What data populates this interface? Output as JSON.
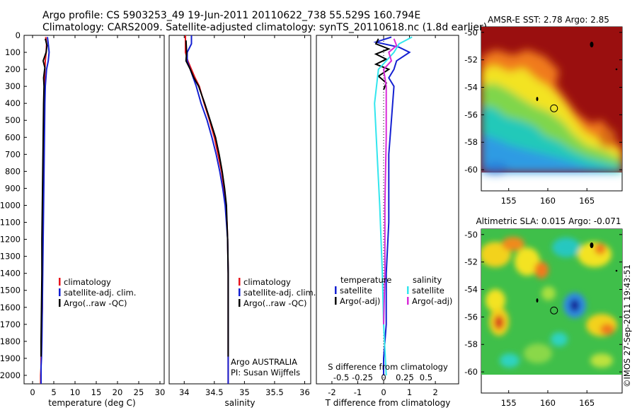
{
  "header": {
    "line1": "Argo profile: CS 5903253_49 19-Jun-2011 20110622_738 55.529S 160.794E",
    "line2": "Climatology: CARS2009. Satellite-adjusted climatology: synTS_20110618.nc (1.8d earlier)"
  },
  "side_stamp": "©IMOS 27-Sep-2011 19:43:51",
  "colors": {
    "climatology": "#e8141c",
    "satellite": "#1420d2",
    "argo": "#000000",
    "s_satellite": "#33e6ee",
    "s_argo": "#d92bd9"
  },
  "chart_data": [
    {
      "type": "line",
      "id": "temperature-profile",
      "xlabel": "temperature (deg C)",
      "ylabel": "",
      "xlim": [
        -2,
        31
      ],
      "ylim": [
        0,
        2050
      ],
      "y_reversed": true,
      "xticks": [
        0,
        5,
        10,
        15,
        20,
        25,
        30
      ],
      "yticks": [
        0,
        100,
        200,
        300,
        400,
        500,
        600,
        700,
        800,
        900,
        1000,
        1100,
        1200,
        1300,
        1400,
        1500,
        1600,
        1700,
        1800,
        1900,
        2000
      ],
      "legend_placement": "lower-left",
      "series": [
        {
          "name": "climatology",
          "color": "climatology",
          "x": [
            3.1,
            3.3,
            3.2,
            3.0,
            2.9,
            2.8,
            2.7,
            2.6,
            2.6,
            2.5,
            2.4,
            2.3,
            2.3,
            2.2,
            2.1,
            2.0,
            2.0,
            1.9,
            1.9,
            1.9
          ],
          "y": [
            10,
            50,
            100,
            150,
            200,
            300,
            400,
            600,
            800,
            1000,
            1200,
            1400,
            1600,
            1700,
            1800,
            1900,
            1950,
            2000,
            2030,
            2050
          ]
        },
        {
          "name": "satellite-adj. clim.",
          "color": "satellite",
          "x": [
            3.5,
            3.7,
            3.9,
            3.7,
            3.3,
            3.0,
            2.9,
            2.8,
            2.7,
            2.6,
            2.5,
            2.4,
            2.3,
            2.2,
            2.1,
            2.0,
            2.0,
            2.0
          ],
          "y": [
            10,
            50,
            100,
            150,
            200,
            300,
            400,
            600,
            800,
            1000,
            1200,
            1400,
            1600,
            1800,
            1900,
            1950,
            2000,
            2050
          ]
        },
        {
          "name": "Argo(..raw -QC)",
          "color": "argo",
          "x": [
            3.0,
            3.4,
            3.2,
            2.5,
            2.9,
            2.6,
            2.7,
            2.6,
            2.5,
            2.4,
            2.3,
            2.2,
            2.2,
            2.1,
            2.0,
            2.0
          ],
          "y": [
            20,
            60,
            100,
            150,
            190,
            250,
            300,
            400,
            600,
            800,
            1000,
            1200,
            1400,
            1600,
            1800,
            1890
          ]
        }
      ]
    },
    {
      "type": "line",
      "id": "salinity-profile",
      "xlabel": "salinity",
      "ylabel": "",
      "xlim": [
        33.75,
        36.1
      ],
      "ylim": [
        0,
        2050
      ],
      "y_reversed": true,
      "xticks": [
        34,
        34.5,
        35,
        35.5,
        36
      ],
      "legend_placement": "lower-right",
      "annotations": [
        "Argo AUSTRALIA",
        "PI: Susan Wijffels"
      ],
      "series": [
        {
          "name": "climatology",
          "color": "climatology",
          "x": [
            34.02,
            34.02,
            34.06,
            34.12,
            34.18,
            34.25,
            34.33,
            34.42,
            34.5,
            34.56,
            34.62,
            34.66,
            34.69,
            34.71,
            34.72,
            34.73,
            34.73,
            34.73,
            34.73
          ],
          "y": [
            0,
            100,
            150,
            200,
            250,
            300,
            400,
            500,
            600,
            700,
            800,
            900,
            1000,
            1100,
            1200,
            1400,
            1600,
            1800,
            2050
          ]
        },
        {
          "name": "satellite-adj. clim.",
          "color": "satellite",
          "x": [
            34.12,
            34.12,
            34.05,
            34.05,
            34.1,
            34.2,
            34.28,
            34.38,
            34.46,
            34.53,
            34.59,
            34.64,
            34.68,
            34.7,
            34.72,
            34.73,
            34.73,
            34.73,
            34.73
          ],
          "y": [
            0,
            50,
            100,
            150,
            200,
            300,
            400,
            500,
            600,
            700,
            800,
            900,
            1000,
            1100,
            1200,
            1400,
            1600,
            1800,
            2050
          ]
        },
        {
          "name": "Argo(..raw -QC)",
          "color": "argo",
          "x": [
            34.03,
            34.04,
            34.03,
            34.1,
            34.16,
            34.24,
            34.34,
            34.43,
            34.52,
            34.58,
            34.63,
            34.67,
            34.7,
            34.71,
            34.72,
            34.73,
            34.73,
            34.73
          ],
          "y": [
            30,
            100,
            150,
            200,
            250,
            300,
            400,
            500,
            600,
            700,
            800,
            900,
            1000,
            1100,
            1200,
            1400,
            1600,
            1890
          ]
        }
      ]
    },
    {
      "type": "line",
      "id": "difference-profile",
      "xlabel": "T difference from climatology",
      "xlabel_top": "S difference from climatology",
      "xlim": [
        -2.6,
        2.9
      ],
      "ylim": [
        0,
        2050
      ],
      "y_reversed": true,
      "xticks": [
        -2,
        -1,
        0,
        1,
        2
      ],
      "xticks_s": [
        -0.5,
        -0.25,
        0,
        0.25,
        0.5
      ],
      "xticks_s_labels": [
        "-0.5",
        "-0.25",
        "0",
        "0.25",
        "0.5"
      ],
      "legend_headers": [
        "temperature",
        "salinity"
      ],
      "series": [
        {
          "name": "satellite",
          "group": "temperature",
          "color": "satellite",
          "x": [
            0.3,
            -0.3,
            0.6,
            1.0,
            0.5,
            0.4,
            0.2,
            0.4,
            0.3,
            0.2,
            0.2,
            0.2,
            0.1,
            0.1,
            0.0,
            0.0
          ],
          "y": [
            10,
            40,
            70,
            100,
            150,
            200,
            250,
            300,
            500,
            700,
            900,
            1100,
            1400,
            1700,
            1900,
            2000
          ]
        },
        {
          "name": "Argo(-adj)",
          "group": "temperature",
          "color": "argo",
          "x": [
            -0.2,
            -0.3,
            0.2,
            -0.3,
            0.1,
            -0.3,
            0.2,
            -0.2,
            0.1,
            0.0
          ],
          "y": [
            20,
            50,
            80,
            110,
            140,
            170,
            200,
            240,
            280,
            320
          ]
        },
        {
          "name": "satellite",
          "group": "salinity",
          "color": "s_satellite",
          "x": [
            1.1,
            0.6,
            0.4,
            0.1,
            -0.2,
            -0.35,
            -0.15,
            -0.05,
            0.0,
            0.1
          ],
          "y": [
            10,
            50,
            100,
            150,
            200,
            400,
            1000,
            1400,
            1700,
            2000
          ]
        },
        {
          "name": "Argo(-adj)",
          "group": "salinity",
          "color": "s_argo",
          "x": [
            0.4,
            0.5,
            0.2,
            0.3,
            0.0,
            0.1,
            0.1,
            0.05,
            0.05,
            0.0
          ],
          "y": [
            20,
            60,
            100,
            150,
            200,
            300,
            600,
            1000,
            1400,
            1700
          ]
        }
      ]
    },
    {
      "type": "heatmap",
      "id": "sst-map",
      "title": "AMSR-E SST: 2.78 Argo: 2.85",
      "xlim": [
        151.5,
        169.5
      ],
      "ylim": [
        -60.2,
        -49.6
      ],
      "xticks": [
        155,
        160,
        165
      ],
      "yticks": [
        -50,
        -52,
        -54,
        -56,
        -58,
        -60
      ],
      "profile_marker": {
        "lon": 160.794,
        "lat": -55.529
      }
    },
    {
      "type": "heatmap",
      "id": "sla-map",
      "title": "Altimetric SLA: 0.015 Argo: -0.071",
      "xlim": [
        151.5,
        169.5
      ],
      "ylim": [
        -60.2,
        -49.6
      ],
      "xticks": [
        155,
        160,
        165
      ],
      "yticks": [
        -50,
        -52,
        -54,
        -56,
        -58,
        -60
      ],
      "profile_marker": {
        "lon": 160.794,
        "lat": -55.529
      }
    }
  ]
}
